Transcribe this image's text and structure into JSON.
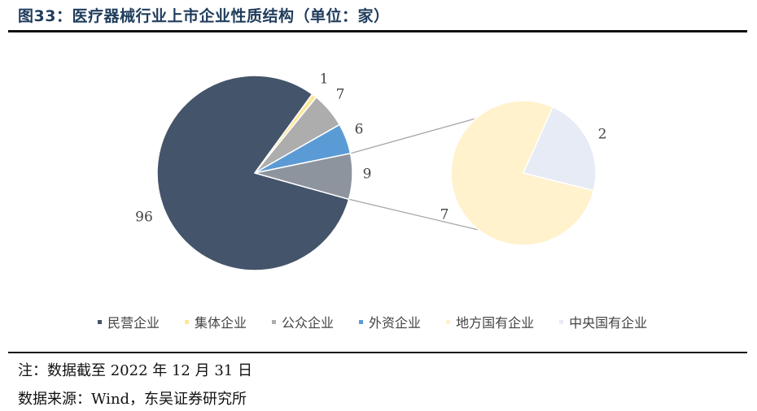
{
  "title": "图33：医疗器械行业上市企业性质结构（单位：家）",
  "notes": {
    "note_line": "注：数据截至 2022 年 12 月 31 日",
    "source_line": "数据来源：Wind，东吴证券研究所"
  },
  "colors": {
    "private": "#44546a",
    "collective": "#ffe699",
    "public": "#adadad",
    "foreign": "#5b9bd5",
    "local_soe": "#fff2cc",
    "central_soe": "#e6ebf5",
    "connector": "#a6a6a6"
  },
  "chart_data": {
    "type": "pie",
    "variant": "pie-of-pie",
    "main": {
      "slices": [
        {
          "key": "private",
          "label": "民营企业",
          "value": 96
        },
        {
          "key": "collective",
          "label": "集体企业",
          "value": 1
        },
        {
          "key": "public",
          "label": "公众企业",
          "value": 7
        },
        {
          "key": "foreign",
          "label": "外资企业",
          "value": 6
        },
        {
          "key": "soe_total",
          "label": "",
          "value": 9
        }
      ]
    },
    "secondary": {
      "of": "soe_total",
      "slices": [
        {
          "key": "local_soe",
          "label": "地方国有企业",
          "value": 7
        },
        {
          "key": "central_soe",
          "label": "中央国有企业",
          "value": 2
        }
      ]
    },
    "legend": {
      "position": "bottom",
      "entries": [
        "民营企业",
        "集体企业",
        "公众企业",
        "外资企业",
        "地方国有企业",
        "中央国有企业"
      ]
    }
  }
}
